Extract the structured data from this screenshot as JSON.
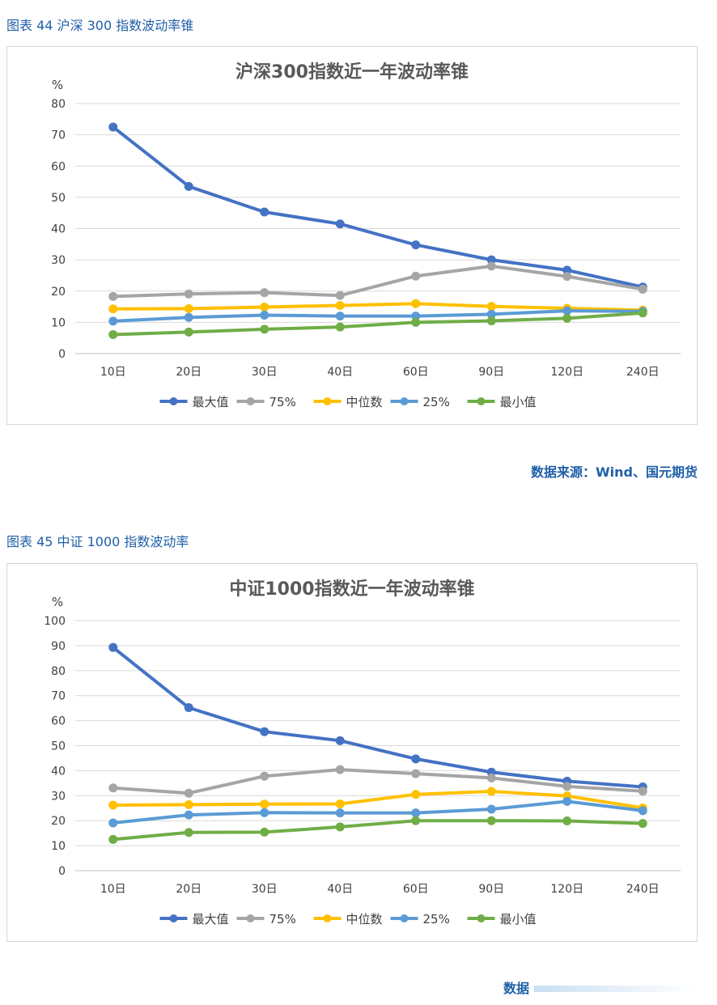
{
  "figure1": {
    "caption": "图表 44  沪深 300 指数波动率锥",
    "source": "数据来源：Wind、国元期货"
  },
  "figure2": {
    "caption": "图表 45  中证 1000 指数波动率",
    "source": "数据"
  },
  "chart_data": [
    {
      "type": "line",
      "title": "沪深300指数近一年波动率锥",
      "ylabel": "%",
      "xlabel": "",
      "ylim": [
        0,
        80
      ],
      "yticks": [
        0,
        10,
        20,
        30,
        40,
        50,
        60,
        70,
        80
      ],
      "grid": true,
      "legend": "bottom",
      "categories": [
        "10日",
        "20日",
        "30日",
        "40日",
        "60日",
        "90日",
        "120日",
        "240日"
      ],
      "series": [
        {
          "name": "最大值",
          "color": "#4472c4",
          "values": [
            72.5,
            53.5,
            45.3,
            41.5,
            34.8,
            30.0,
            26.7,
            21.3
          ]
        },
        {
          "name": "75%",
          "color": "#a5a5a5",
          "values": [
            18.3,
            19.1,
            19.5,
            18.6,
            24.8,
            28.0,
            24.7,
            20.6
          ]
        },
        {
          "name": "中位数",
          "color": "#ffc000",
          "values": [
            14.3,
            14.4,
            14.9,
            15.4,
            16.0,
            15.1,
            14.5,
            13.9
          ]
        },
        {
          "name": "25%",
          "color": "#5b9bd5",
          "values": [
            10.4,
            11.6,
            12.3,
            12.0,
            12.0,
            12.6,
            13.7,
            13.5
          ]
        },
        {
          "name": "最小值",
          "color": "#70ad47",
          "values": [
            6.1,
            6.9,
            7.8,
            8.5,
            10.0,
            10.5,
            11.3,
            13.0
          ]
        }
      ]
    },
    {
      "type": "line",
      "title": "中证1000指数近一年波动率锥",
      "ylabel": "%",
      "xlabel": "",
      "ylim": [
        0,
        100
      ],
      "yticks": [
        0,
        10,
        20,
        30,
        40,
        50,
        60,
        70,
        80,
        90,
        100
      ],
      "grid": true,
      "legend": "bottom",
      "categories": [
        "10日",
        "20日",
        "30日",
        "40日",
        "60日",
        "90日",
        "120日",
        "240日"
      ],
      "series": [
        {
          "name": "最大值",
          "color": "#4472c4",
          "values": [
            89.3,
            65.2,
            55.6,
            52.0,
            44.7,
            39.4,
            35.8,
            33.5
          ]
        },
        {
          "name": "75%",
          "color": "#a5a5a5",
          "values": [
            33.1,
            31.0,
            37.8,
            40.4,
            38.8,
            37.1,
            33.7,
            31.8
          ]
        },
        {
          "name": "中位数",
          "color": "#ffc000",
          "values": [
            26.2,
            26.4,
            26.6,
            26.7,
            30.5,
            31.7,
            29.9,
            25.1
          ]
        },
        {
          "name": "25%",
          "color": "#5b9bd5",
          "values": [
            19.1,
            22.3,
            23.2,
            23.1,
            23.1,
            24.6,
            27.7,
            24.0
          ]
        },
        {
          "name": "最小值",
          "color": "#70ad47",
          "values": [
            12.5,
            15.3,
            15.4,
            17.5,
            20.0,
            20.0,
            19.9,
            18.9
          ]
        }
      ]
    }
  ]
}
